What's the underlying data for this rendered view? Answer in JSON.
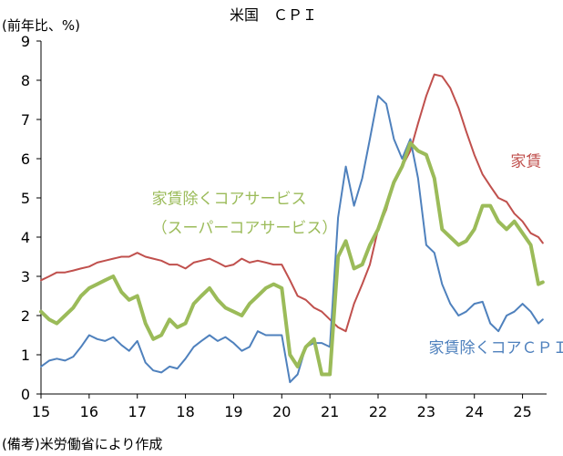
{
  "chart_data": {
    "type": "line",
    "title": "米国　ＣＰＩ",
    "ylabel": "(前年比、%)",
    "source": "(備考)米労働省により作成",
    "ylim": [
      0,
      9
    ],
    "yticks": [
      "0",
      "1",
      "2",
      "3",
      "4",
      "5",
      "6",
      "7",
      "8",
      "9"
    ],
    "xlim": [
      2015.0,
      2025.5
    ],
    "xticks": [
      {
        "value": 2015.0,
        "label": "15"
      },
      {
        "value": 2016.0,
        "label": "16"
      },
      {
        "value": 2017.0,
        "label": "17"
      },
      {
        "value": 2018.0,
        "label": "18"
      },
      {
        "value": 2019.0,
        "label": "19"
      },
      {
        "value": 2020.0,
        "label": "20"
      },
      {
        "value": 2021.0,
        "label": "21"
      },
      {
        "value": 2022.0,
        "label": "22"
      },
      {
        "value": 2023.0,
        "label": "23"
      },
      {
        "value": 2024.0,
        "label": "24"
      },
      {
        "value": 2025.0,
        "label": "25"
      }
    ],
    "grid": false,
    "series": [
      {
        "name": "家賃",
        "color": "#C0504D",
        "stroke_width": 2,
        "x": [
          2015.0,
          2015.17,
          2015.33,
          2015.5,
          2015.67,
          2015.83,
          2016.0,
          2016.17,
          2016.33,
          2016.5,
          2016.67,
          2016.83,
          2017.0,
          2017.17,
          2017.33,
          2017.5,
          2017.67,
          2017.83,
          2018.0,
          2018.17,
          2018.33,
          2018.5,
          2018.67,
          2018.83,
          2019.0,
          2019.17,
          2019.33,
          2019.5,
          2019.67,
          2019.83,
          2020.0,
          2020.17,
          2020.33,
          2020.5,
          2020.67,
          2020.83,
          2021.0,
          2021.17,
          2021.33,
          2021.5,
          2021.67,
          2021.83,
          2022.0,
          2022.17,
          2022.33,
          2022.5,
          2022.67,
          2022.83,
          2023.0,
          2023.17,
          2023.33,
          2023.5,
          2023.67,
          2023.83,
          2024.0,
          2024.17,
          2024.33,
          2024.5,
          2024.67,
          2024.83,
          2025.0,
          2025.17,
          2025.33,
          2025.42
        ],
        "y": [
          2.9,
          3.0,
          3.1,
          3.1,
          3.15,
          3.2,
          3.25,
          3.35,
          3.4,
          3.45,
          3.5,
          3.5,
          3.6,
          3.5,
          3.45,
          3.4,
          3.3,
          3.3,
          3.2,
          3.35,
          3.4,
          3.45,
          3.35,
          3.25,
          3.3,
          3.45,
          3.35,
          3.4,
          3.35,
          3.3,
          3.3,
          2.9,
          2.5,
          2.4,
          2.2,
          2.1,
          1.9,
          1.7,
          1.6,
          2.3,
          2.8,
          3.3,
          4.2,
          4.7,
          5.4,
          5.8,
          6.2,
          6.9,
          7.6,
          8.15,
          8.1,
          7.8,
          7.3,
          6.7,
          6.1,
          5.6,
          5.3,
          5.0,
          4.9,
          4.6,
          4.4,
          4.1,
          4.0,
          3.85
        ]
      },
      {
        "name": "家賃除くコアサービス\n（スーパーコアサービス）",
        "color": "#9BBB59",
        "stroke_width": 4,
        "x": [
          2015.0,
          2015.17,
          2015.33,
          2015.5,
          2015.67,
          2015.83,
          2016.0,
          2016.17,
          2016.33,
          2016.5,
          2016.67,
          2016.83,
          2017.0,
          2017.17,
          2017.33,
          2017.5,
          2017.67,
          2017.83,
          2018.0,
          2018.17,
          2018.33,
          2018.5,
          2018.67,
          2018.83,
          2019.0,
          2019.17,
          2019.33,
          2019.5,
          2019.67,
          2019.83,
          2020.0,
          2020.17,
          2020.33,
          2020.5,
          2020.67,
          2020.83,
          2021.0,
          2021.17,
          2021.33,
          2021.5,
          2021.67,
          2021.83,
          2022.0,
          2022.17,
          2022.33,
          2022.5,
          2022.67,
          2022.83,
          2023.0,
          2023.17,
          2023.33,
          2023.5,
          2023.67,
          2023.83,
          2024.0,
          2024.17,
          2024.33,
          2024.5,
          2024.67,
          2024.83,
          2025.0,
          2025.17,
          2025.33,
          2025.42
        ],
        "y": [
          2.1,
          1.9,
          1.8,
          2.0,
          2.2,
          2.5,
          2.7,
          2.8,
          2.9,
          3.0,
          2.6,
          2.4,
          2.5,
          1.8,
          1.4,
          1.5,
          1.9,
          1.7,
          1.8,
          2.3,
          2.5,
          2.7,
          2.4,
          2.2,
          2.1,
          2.0,
          2.3,
          2.5,
          2.7,
          2.8,
          2.7,
          1.0,
          0.7,
          1.2,
          1.4,
          0.5,
          0.5,
          3.5,
          3.9,
          3.2,
          3.3,
          3.8,
          4.2,
          4.8,
          5.4,
          5.8,
          6.4,
          6.2,
          6.1,
          5.5,
          4.2,
          4.0,
          3.8,
          3.9,
          4.2,
          4.8,
          4.8,
          4.4,
          4.2,
          4.4,
          4.1,
          3.8,
          2.8,
          2.85
        ]
      },
      {
        "name": "家賃除くコアＣＰＩ",
        "color": "#4F81BD",
        "stroke_width": 2,
        "x": [
          2015.0,
          2015.17,
          2015.33,
          2015.5,
          2015.67,
          2015.83,
          2016.0,
          2016.17,
          2016.33,
          2016.5,
          2016.67,
          2016.83,
          2017.0,
          2017.17,
          2017.33,
          2017.5,
          2017.67,
          2017.83,
          2018.0,
          2018.17,
          2018.33,
          2018.5,
          2018.67,
          2018.83,
          2019.0,
          2019.17,
          2019.33,
          2019.5,
          2019.67,
          2019.83,
          2020.0,
          2020.17,
          2020.33,
          2020.5,
          2020.67,
          2020.83,
          2021.0,
          2021.17,
          2021.33,
          2021.5,
          2021.67,
          2021.83,
          2022.0,
          2022.17,
          2022.33,
          2022.5,
          2022.67,
          2022.83,
          2023.0,
          2023.17,
          2023.33,
          2023.5,
          2023.67,
          2023.83,
          2024.0,
          2024.17,
          2024.33,
          2024.5,
          2024.67,
          2024.83,
          2025.0,
          2025.17,
          2025.33,
          2025.42
        ],
        "y": [
          0.7,
          0.85,
          0.9,
          0.85,
          0.95,
          1.2,
          1.5,
          1.4,
          1.35,
          1.45,
          1.25,
          1.1,
          1.35,
          0.8,
          0.6,
          0.55,
          0.7,
          0.65,
          0.9,
          1.2,
          1.35,
          1.5,
          1.35,
          1.45,
          1.3,
          1.1,
          1.2,
          1.6,
          1.5,
          1.5,
          1.5,
          0.3,
          0.5,
          1.2,
          1.3,
          1.3,
          1.2,
          4.5,
          5.8,
          4.8,
          5.5,
          6.5,
          7.6,
          7.4,
          6.5,
          6.0,
          6.5,
          5.5,
          3.8,
          3.6,
          2.8,
          2.3,
          2.0,
          2.1,
          2.3,
          2.35,
          1.8,
          1.6,
          2.0,
          2.1,
          2.3,
          2.1,
          1.8,
          1.9
        ]
      }
    ],
    "annotations": [
      {
        "series": 0,
        "text": "家賃",
        "x": 2024.75,
        "y": 5.8
      },
      {
        "series": 1,
        "text": "家賃除くコアサービス",
        "x": 2017.3,
        "y": 4.85
      },
      {
        "series": 1,
        "text": "（スーパーコアサービス）",
        "x": 2017.3,
        "y": 4.1
      },
      {
        "series": 2,
        "text": "家賃除くコアＣＰＩ",
        "x": 2023.05,
        "y": 1.05
      }
    ]
  }
}
